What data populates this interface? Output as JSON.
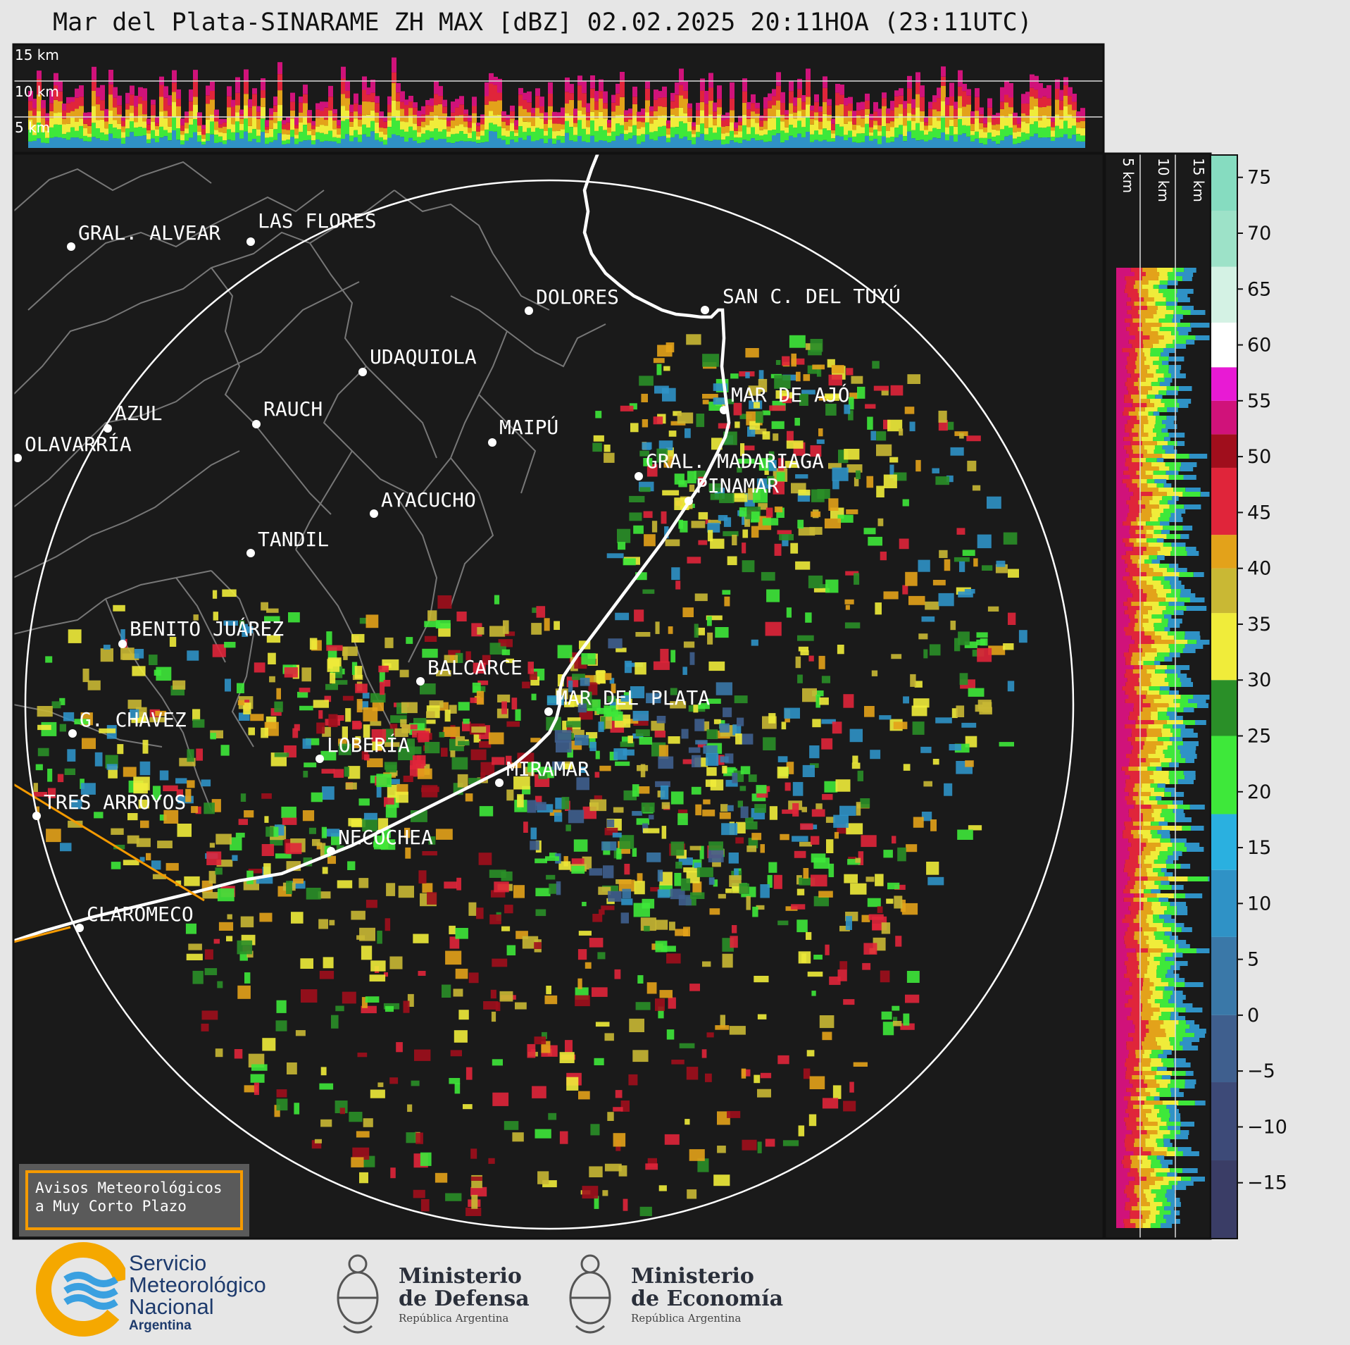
{
  "title": "Mar del Plata-SINARAME ZH MAX [dBZ] 02.02.2025 20:11HOA (23:11UTC)",
  "product": {
    "variable": "ZH MAX",
    "unit": "dBZ"
  },
  "height_markers": [
    "15 km",
    "10 km",
    "5 km"
  ],
  "colorbar": {
    "ticks": [
      "75",
      "70",
      "65",
      "60",
      "55",
      "50",
      "45",
      "40",
      "35",
      "30",
      "25",
      "20",
      "15",
      "10",
      "5",
      "0",
      "−5",
      "−10",
      "−15"
    ],
    "range": [
      -20,
      77
    ],
    "scale": [
      {
        "from": -20,
        "color": "#3a3d66"
      },
      {
        "from": -13,
        "color": "#3d4a78"
      },
      {
        "from": -6,
        "color": "#3f5f8e"
      },
      {
        "from": 0,
        "color": "#3a78a8"
      },
      {
        "from": 7,
        "color": "#2f92c6"
      },
      {
        "from": 13,
        "color": "#2ab0e0"
      },
      {
        "from": 18,
        "color": "#3ee83a"
      },
      {
        "from": 25,
        "color": "#2a8f28"
      },
      {
        "from": 30,
        "color": "#f0ec3a"
      },
      {
        "from": 36,
        "color": "#c9b834"
      },
      {
        "from": 40,
        "color": "#e3a21a"
      },
      {
        "from": 43,
        "color": "#e0253a"
      },
      {
        "from": 49,
        "color": "#a00e1c"
      },
      {
        "from": 52,
        "color": "#d0127a"
      },
      {
        "from": 55,
        "color": "#e81ad4"
      },
      {
        "from": 58,
        "color": "#ffffff"
      },
      {
        "from": 62,
        "color": "#d4f2e4"
      },
      {
        "from": 67,
        "color": "#9de2c8"
      },
      {
        "from": 72,
        "color": "#86dcc0"
      }
    ]
  },
  "cities": [
    {
      "name": "GRAL. ALVEAR"
    },
    {
      "name": "LAS FLORES"
    },
    {
      "name": "DOLORES"
    },
    {
      "name": "SAN C. DEL TUYÚ"
    },
    {
      "name": "UDAQUIOLA"
    },
    {
      "name": "MAR DE AJÓ"
    },
    {
      "name": "AZUL"
    },
    {
      "name": "RAUCH"
    },
    {
      "name": "MAIPÚ"
    },
    {
      "name": "OLAVARRÍA"
    },
    {
      "name": "GRAL. MADARIAGA"
    },
    {
      "name": "PINAMAR"
    },
    {
      "name": "AYACUCHO"
    },
    {
      "name": "TANDIL"
    },
    {
      "name": "BENITO JUÁREZ"
    },
    {
      "name": "BALCARCE"
    },
    {
      "name": "MAR DEL PLATA"
    },
    {
      "name": "G. CHAVEZ"
    },
    {
      "name": "LOBERÍA"
    },
    {
      "name": "MIRAMAR"
    },
    {
      "name": "TRES ARROYOS"
    },
    {
      "name": "NECOCHEA"
    },
    {
      "name": "CLAROMECO"
    }
  ],
  "notice": {
    "line1": "Avisos Meteorológicos",
    "line2": "a Muy Corto Plazo"
  },
  "footer": {
    "smn": {
      "line1": "Servicio",
      "line2": "Meteorológico",
      "line3": "Nacional",
      "line4": "Argentina"
    },
    "defensa": {
      "line1": "Ministerio",
      "line2": "de Defensa",
      "line3": "República Argentina"
    },
    "economia": {
      "line1": "Ministerio",
      "line2": "de Economía",
      "line3": "República Argentina"
    }
  }
}
